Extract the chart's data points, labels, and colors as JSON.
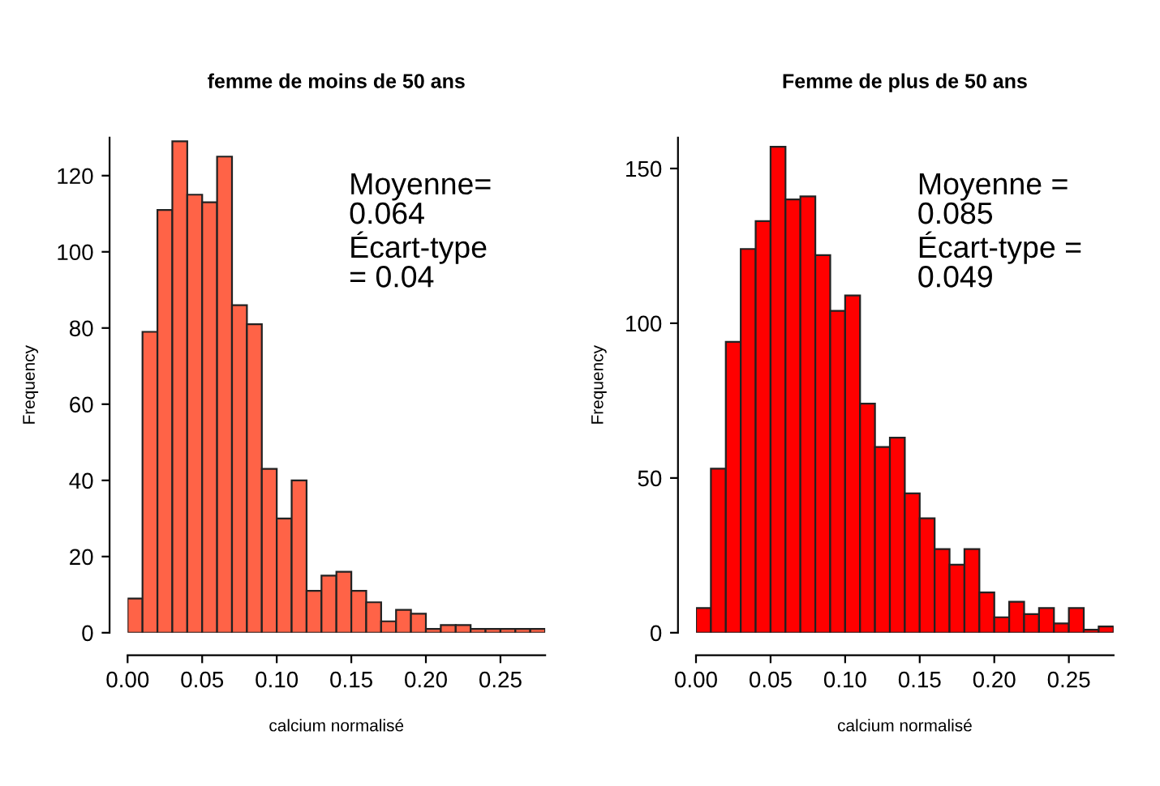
{
  "chart_data": [
    {
      "type": "histogram",
      "title": "femme de moins de 50 ans",
      "xlabel": "calcium normalisé",
      "ylabel": "Frequency",
      "color": "#ff6347",
      "bins": [
        0,
        0.01,
        0.02,
        0.03,
        0.04,
        0.05,
        0.06,
        0.07,
        0.08,
        0.09,
        0.1,
        0.11,
        0.12,
        0.13,
        0.14,
        0.15,
        0.16,
        0.17,
        0.18,
        0.19,
        0.2,
        0.21,
        0.22,
        0.23,
        0.24,
        0.25,
        0.26,
        0.27,
        0.28
      ],
      "values": [
        9,
        79,
        111,
        129,
        115,
        113,
        125,
        86,
        81,
        43,
        30,
        40,
        11,
        15,
        16,
        11,
        8,
        3,
        6,
        5,
        1,
        2,
        2,
        1,
        1,
        1,
        1,
        1
      ],
      "xlim": [
        0,
        0.28
      ],
      "ylim": [
        0,
        130
      ],
      "xticks": [
        {
          "value": 0,
          "label": "0.00"
        },
        0.05,
        {
          "value": 0.1,
          "label": "0.10"
        },
        0.15,
        {
          "value": 0.2,
          "label": "0.20"
        },
        0.25
      ],
      "yticks": [
        0,
        20,
        40,
        60,
        80,
        100,
        120
      ],
      "annotations": [
        "Moyenne=\n0.064\nÉcart-type\n= 0.04"
      ],
      "grid": false
    },
    {
      "type": "histogram",
      "title": "Femme de plus de 50 ans",
      "xlabel": "calcium normalisé",
      "ylabel": "Frequency",
      "color": "#ff0000",
      "bins": [
        0,
        0.01,
        0.02,
        0.03,
        0.04,
        0.05,
        0.06,
        0.07,
        0.08,
        0.09,
        0.1,
        0.11,
        0.12,
        0.13,
        0.14,
        0.15,
        0.16,
        0.17,
        0.18,
        0.19,
        0.2,
        0.21,
        0.22,
        0.23,
        0.24,
        0.25,
        0.26,
        0.27,
        0.28
      ],
      "values": [
        8,
        53,
        94,
        124,
        133,
        157,
        140,
        141,
        122,
        104,
        109,
        74,
        60,
        63,
        45,
        37,
        27,
        22,
        27,
        13,
        5,
        10,
        6,
        8,
        3,
        8,
        1,
        2
      ],
      "xlim": [
        0,
        0.28
      ],
      "ylim": [
        0,
        160
      ],
      "xticks": [
        {
          "value": 0,
          "label": "0.00"
        },
        0.05,
        {
          "value": 0.1,
          "label": "0.10"
        },
        0.15,
        {
          "value": 0.2,
          "label": "0.20"
        },
        0.25
      ],
      "yticks": [
        0,
        50,
        100,
        150
      ],
      "annotations": [
        "Moyenne =\n0.085\nÉcart-type =\n0.049"
      ],
      "grid": false
    }
  ]
}
